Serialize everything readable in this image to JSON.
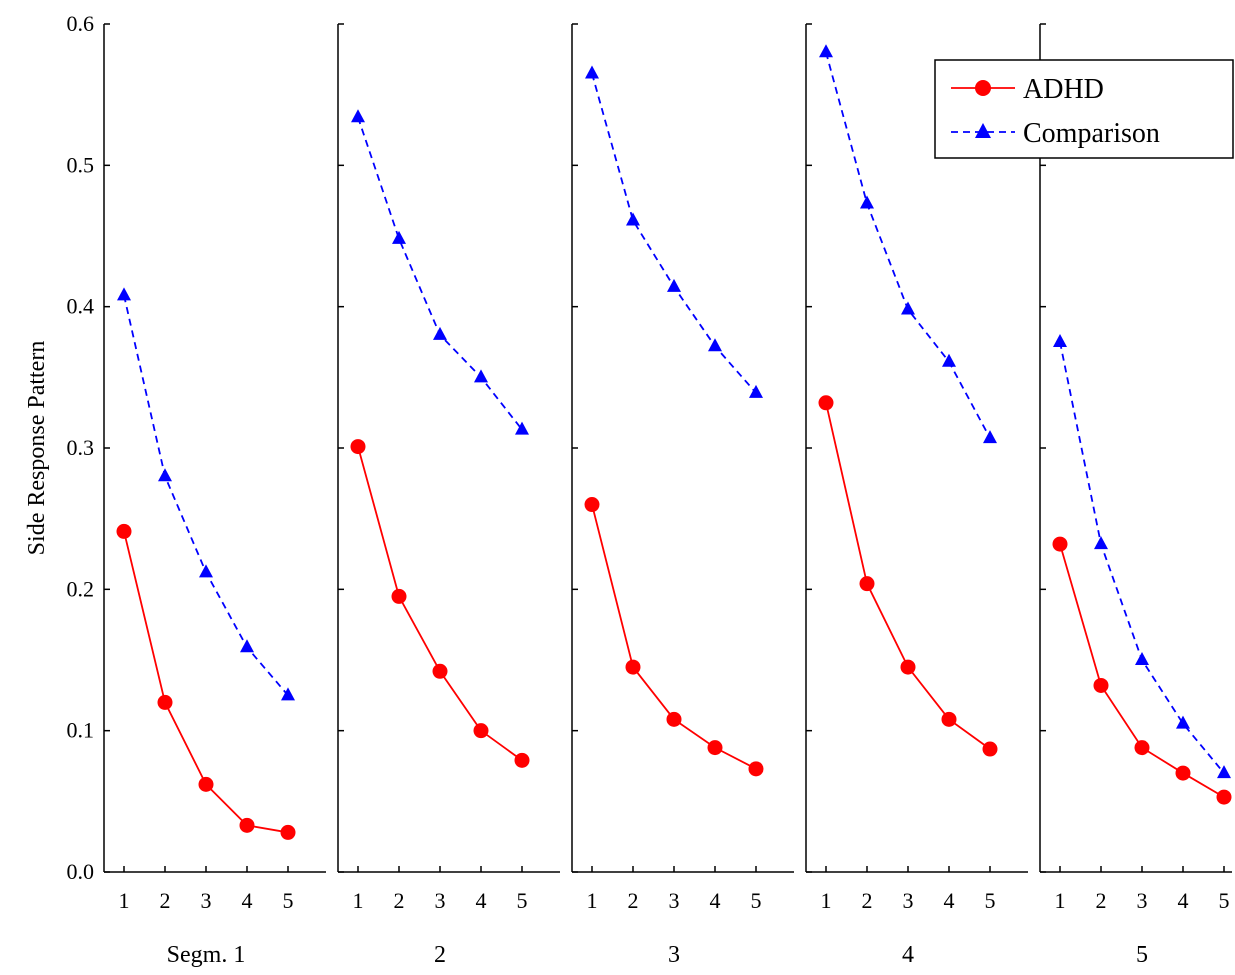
{
  "chart_data": {
    "type": "line",
    "ylabel": "Side Response Pattern",
    "ylim": [
      0,
      0.6
    ],
    "yticks": [
      "0.0",
      "0.1",
      "0.2",
      "0.3",
      "0.4",
      "0.5",
      "0.6"
    ],
    "x": [
      1,
      2,
      3,
      4,
      5
    ],
    "xtick_labels": [
      "1",
      "2",
      "3",
      "4",
      "5"
    ],
    "legend": {
      "placement": "top-right",
      "entries": [
        "ADHD",
        "Comparison"
      ]
    },
    "colors": {
      "ADHD": "#ff0000",
      "Comparison": "#0000ff"
    },
    "panels": [
      {
        "label": "Segm. 1",
        "series": [
          {
            "name": "ADHD",
            "values": [
              0.241,
              0.12,
              0.062,
              0.033,
              0.028
            ]
          },
          {
            "name": "Comparison",
            "values": [
              0.408,
              0.28,
              0.212,
              0.159,
              0.125
            ]
          }
        ]
      },
      {
        "label": "2",
        "series": [
          {
            "name": "ADHD",
            "values": [
              0.301,
              0.195,
              0.142,
              0.1,
              0.079
            ]
          },
          {
            "name": "Comparison",
            "values": [
              0.534,
              0.448,
              0.38,
              0.35,
              0.313
            ]
          }
        ]
      },
      {
        "label": "3",
        "series": [
          {
            "name": "ADHD",
            "values": [
              0.26,
              0.145,
              0.108,
              0.088,
              0.073
            ]
          },
          {
            "name": "Comparison",
            "values": [
              0.565,
              0.461,
              0.414,
              0.372,
              0.339
            ]
          }
        ]
      },
      {
        "label": "4",
        "series": [
          {
            "name": "ADHD",
            "values": [
              0.332,
              0.204,
              0.145,
              0.108,
              0.087
            ]
          },
          {
            "name": "Comparison",
            "values": [
              0.58,
              0.473,
              0.398,
              0.361,
              0.307
            ]
          }
        ]
      },
      {
        "label": "5",
        "series": [
          {
            "name": "ADHD",
            "values": [
              0.232,
              0.132,
              0.088,
              0.07,
              0.053
            ]
          },
          {
            "name": "Comparison",
            "values": [
              0.375,
              0.232,
              0.15,
              0.105,
              0.07
            ]
          }
        ]
      }
    ]
  }
}
